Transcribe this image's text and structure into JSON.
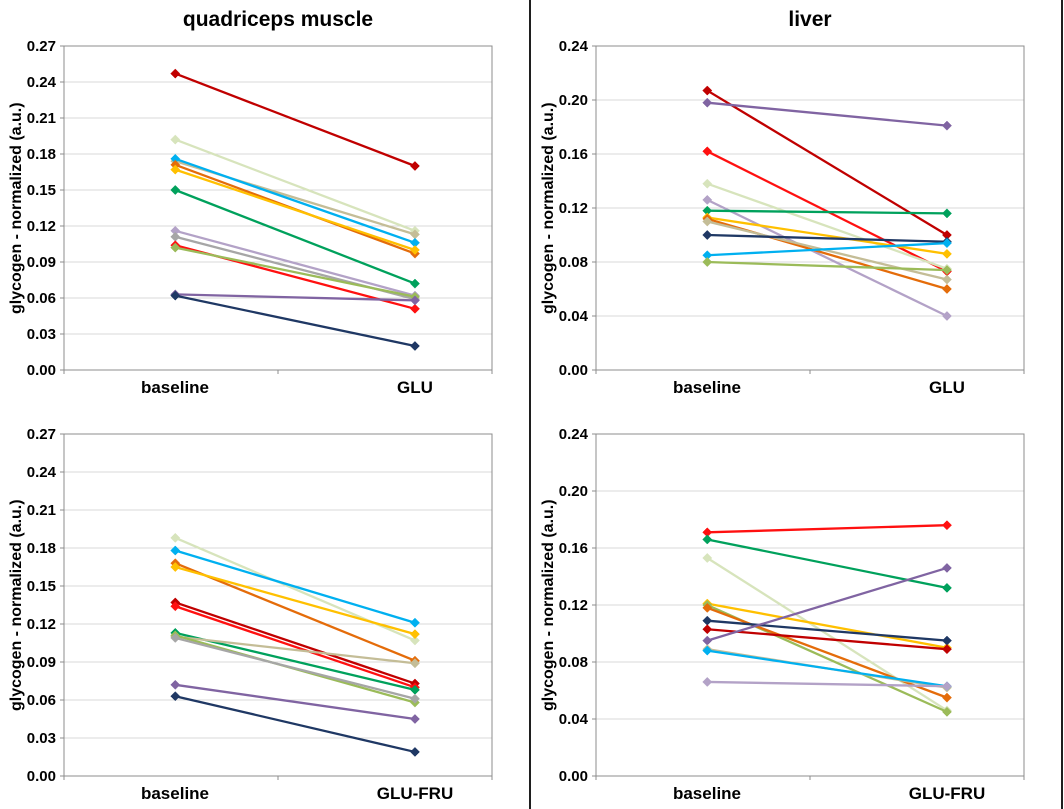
{
  "style": {
    "background": "#FFFFFF",
    "grid_color": "#D9D9D9",
    "axis_color": "#8C8C8C",
    "text_color": "#000000",
    "divider_color": "#1F1F1F"
  },
  "chart_data": [
    {
      "type": "line",
      "title": "quadriceps muscle",
      "ylabel": "glycogen - normalized (a.u.)",
      "xlabel": "",
      "categories": [
        "baseline",
        "GLU"
      ],
      "ylim": [
        0,
        0.27
      ],
      "ytick_step": 0.03,
      "grid": true,
      "legend_position": "none",
      "marker": "diamond",
      "series": [
        {
          "name": "darkred",
          "color": "#C00000",
          "values": [
            0.247,
            0.17
          ]
        },
        {
          "name": "pale",
          "color": "#D7E4BC",
          "values": [
            0.192,
            0.116
          ]
        },
        {
          "name": "tan",
          "color": "#C4BD97",
          "values": [
            0.174,
            0.113
          ]
        },
        {
          "name": "cyan",
          "color": "#00B0F0",
          "values": [
            0.176,
            0.106
          ]
        },
        {
          "name": "orange",
          "color": "#E46C0A",
          "values": [
            0.171,
            0.097
          ]
        },
        {
          "name": "gold",
          "color": "#FFC000",
          "values": [
            0.167,
            0.1
          ]
        },
        {
          "name": "green",
          "color": "#00A15C",
          "values": [
            0.15,
            0.072
          ]
        },
        {
          "name": "lavender",
          "color": "#B3A2C7",
          "values": [
            0.116,
            0.062
          ]
        },
        {
          "name": "gray",
          "color": "#A6A6A6",
          "values": [
            0.111,
            0.059
          ]
        },
        {
          "name": "red",
          "color": "#FF1010",
          "values": [
            0.104,
            0.051
          ]
        },
        {
          "name": "olive",
          "color": "#9BBB59",
          "values": [
            0.102,
            0.061
          ]
        },
        {
          "name": "purple",
          "color": "#8064A2",
          "values": [
            0.063,
            0.058
          ]
        },
        {
          "name": "navy",
          "color": "#1F3864",
          "values": [
            0.062,
            0.02
          ]
        }
      ]
    },
    {
      "type": "line",
      "title": "liver",
      "ylabel": "glycogen - normalized (a.u.)",
      "xlabel": "",
      "categories": [
        "baseline",
        "GLU"
      ],
      "ylim": [
        0,
        0.24
      ],
      "ytick_step": 0.04,
      "grid": true,
      "legend_position": "none",
      "marker": "diamond",
      "series": [
        {
          "name": "darkred",
          "color": "#C00000",
          "values": [
            0.207,
            0.1
          ]
        },
        {
          "name": "purple",
          "color": "#8064A2",
          "values": [
            0.198,
            0.181
          ]
        },
        {
          "name": "red",
          "color": "#FF1010",
          "values": [
            0.162,
            0.073
          ]
        },
        {
          "name": "pale",
          "color": "#D7E4BC",
          "values": [
            0.138,
            0.075
          ]
        },
        {
          "name": "lavender",
          "color": "#B3A2C7",
          "values": [
            0.126,
            0.04
          ]
        },
        {
          "name": "green",
          "color": "#00A15C",
          "values": [
            0.118,
            0.116
          ]
        },
        {
          "name": "gold",
          "color": "#FFC000",
          "values": [
            0.113,
            0.086
          ]
        },
        {
          "name": "orange",
          "color": "#E46C0A",
          "values": [
            0.112,
            0.06
          ]
        },
        {
          "name": "tan",
          "color": "#C4BD97",
          "values": [
            0.11,
            0.067
          ]
        },
        {
          "name": "navy",
          "color": "#1F3864",
          "values": [
            0.1,
            0.095
          ]
        },
        {
          "name": "cyan",
          "color": "#00B0F0",
          "values": [
            0.085,
            0.094
          ]
        },
        {
          "name": "olive",
          "color": "#9BBB59",
          "values": [
            0.08,
            0.074
          ]
        }
      ]
    },
    {
      "type": "line",
      "title": "",
      "ylabel": "glycogen - normalized (a.u.)",
      "xlabel": "",
      "categories": [
        "baseline",
        "GLU-FRU"
      ],
      "ylim": [
        0,
        0.27
      ],
      "ytick_step": 0.03,
      "grid": true,
      "legend_position": "none",
      "marker": "diamond",
      "series": [
        {
          "name": "pale",
          "color": "#D7E4BC",
          "values": [
            0.188,
            0.107
          ]
        },
        {
          "name": "cyan",
          "color": "#00B0F0",
          "values": [
            0.178,
            0.121
          ]
        },
        {
          "name": "orange",
          "color": "#E46C0A",
          "values": [
            0.168,
            0.091
          ]
        },
        {
          "name": "gold",
          "color": "#FFC000",
          "values": [
            0.165,
            0.112
          ]
        },
        {
          "name": "darkred",
          "color": "#C00000",
          "values": [
            0.137,
            0.073
          ]
        },
        {
          "name": "red",
          "color": "#FF1010",
          "values": [
            0.134,
            0.07
          ]
        },
        {
          "name": "green",
          "color": "#00A15C",
          "values": [
            0.113,
            0.068
          ]
        },
        {
          "name": "tan",
          "color": "#C4BD97",
          "values": [
            0.11,
            0.089
          ]
        },
        {
          "name": "olive",
          "color": "#9BBB59",
          "values": [
            0.111,
            0.058
          ]
        },
        {
          "name": "gray",
          "color": "#A6A6A6",
          "values": [
            0.109,
            0.061
          ]
        },
        {
          "name": "purple",
          "color": "#8064A2",
          "values": [
            0.072,
            0.045
          ]
        },
        {
          "name": "navy",
          "color": "#1F3864",
          "values": [
            0.063,
            0.019
          ]
        }
      ]
    },
    {
      "type": "line",
      "title": "",
      "ylabel": "glycogen - normalized (a.u.)",
      "xlabel": "",
      "categories": [
        "baseline",
        "GLU-FRU"
      ],
      "ylim": [
        0,
        0.24
      ],
      "ytick_step": 0.04,
      "grid": true,
      "legend_position": "none",
      "marker": "diamond",
      "series": [
        {
          "name": "red",
          "color": "#FF1010",
          "values": [
            0.171,
            0.176
          ]
        },
        {
          "name": "green",
          "color": "#00A15C",
          "values": [
            0.166,
            0.132
          ]
        },
        {
          "name": "pale",
          "color": "#D7E4BC",
          "values": [
            0.153,
            0.046
          ]
        },
        {
          "name": "gold",
          "color": "#FFC000",
          "values": [
            0.121,
            0.09
          ]
        },
        {
          "name": "olive",
          "color": "#9BBB59",
          "values": [
            0.12,
            0.045
          ]
        },
        {
          "name": "orange",
          "color": "#E46C0A",
          "values": [
            0.118,
            0.055
          ]
        },
        {
          "name": "navy",
          "color": "#1F3864",
          "values": [
            0.109,
            0.095
          ]
        },
        {
          "name": "darkred",
          "color": "#C00000",
          "values": [
            0.103,
            0.089
          ]
        },
        {
          "name": "purple",
          "color": "#8064A2",
          "values": [
            0.095,
            0.146
          ]
        },
        {
          "name": "tan",
          "color": "#C4BD97",
          "values": [
            0.089,
            0.062
          ]
        },
        {
          "name": "cyan",
          "color": "#00B0F0",
          "values": [
            0.088,
            0.063
          ]
        },
        {
          "name": "lavender",
          "color": "#B3A2C7",
          "values": [
            0.066,
            0.063
          ]
        }
      ]
    }
  ]
}
